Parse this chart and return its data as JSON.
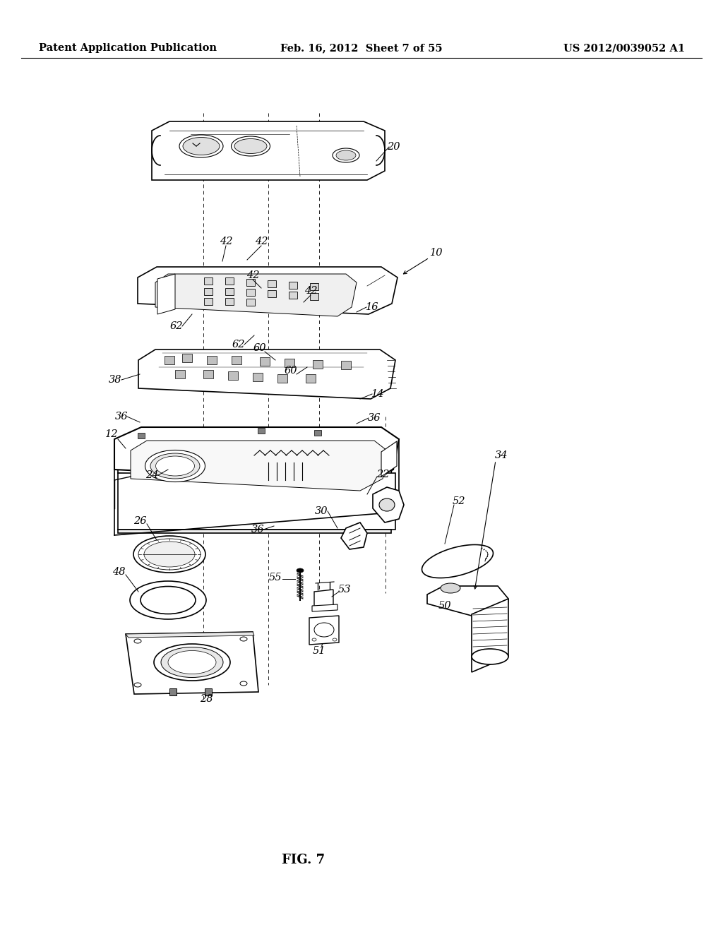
{
  "header_left": "Patent Application Publication",
  "header_center": "Feb. 16, 2012  Sheet 7 of 55",
  "header_right": "US 2012/0039052 A1",
  "figure_label": "FIG. 7",
  "background_color": "#ffffff",
  "line_color": "#000000",
  "header_fontsize": 10.5,
  "label_fontsize": 10.5,
  "fig_label_fontsize": 13
}
